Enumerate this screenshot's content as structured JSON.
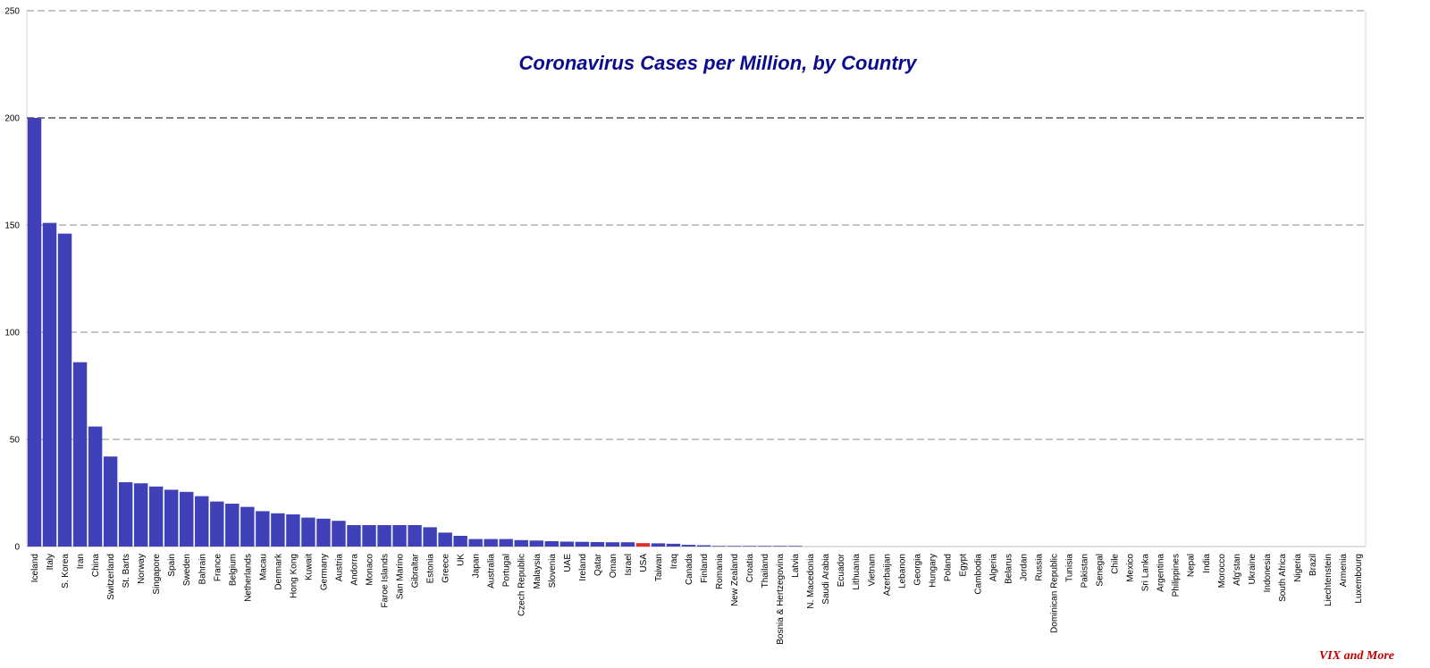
{
  "chart_data": {
    "type": "bar",
    "title": "Coronavirus Cases per Million, by Country",
    "credit": "VIX and More",
    "xlabel": "",
    "ylabel": "",
    "ylim": [
      0,
      250
    ],
    "yticks": [
      0,
      50,
      100,
      150,
      200,
      250
    ],
    "grid": true,
    "legend": "none",
    "colors": {
      "default": "#4040b8",
      "highlight": "#e0302a",
      "highlight_category": "USA"
    },
    "categories": [
      "Iceland",
      "Italy",
      "S. Korea",
      "Iran",
      "China",
      "Switzerland",
      "St. Barts",
      "Norway",
      "Singapore",
      "Spain",
      "Sweden",
      "Bahrain",
      "France",
      "Belgium",
      "Netherlands",
      "Macau",
      "Denmark",
      "Hong Kong",
      "Kuwait",
      "Germany",
      "Austria",
      "Andorra",
      "Monaco",
      "Faroe Islands",
      "San Marino",
      "Gibraltar",
      "Estonia",
      "Greece",
      "UK",
      "Japan",
      "Australia",
      "Portugal",
      "Czech Republic",
      "Malaysia",
      "Slovenia",
      "UAE",
      "Ireland",
      "Qatar",
      "Oman",
      "Israel",
      "USA",
      "Taiwan",
      "Iraq",
      "Canada",
      "Finland",
      "Romania",
      "New Zealand",
      "Croatia",
      "Thailand",
      "Bosnia & Hertzegovina",
      "Latvia",
      "N. Macedonia",
      "Saudi Arabia",
      "Ecuador",
      "Lithuania",
      "Vietnam",
      "Azerbaijan",
      "Lebanon",
      "Georgia",
      "Hungary",
      "Poland",
      "Egypt",
      "Cambodia",
      "Algeria",
      "Belarus",
      "Jordan",
      "Russia",
      "Dominican Republic",
      "Tunisia",
      "Pakistan",
      "Senegal",
      "Chile",
      "Mexico",
      "Sri Lanka",
      "Argentina",
      "Philippines",
      "Nepal",
      "India",
      "Morocco",
      "Afg'stan",
      "Ukraine",
      "Indonesia",
      "South Africa",
      "Nigeria",
      "Brazil",
      "Liechtenstein",
      "Armenia",
      "Luxembourg"
    ],
    "values": [
      200,
      151,
      146,
      86,
      56,
      42,
      30,
      29.5,
      28,
      26.5,
      25.5,
      23.5,
      21,
      20,
      18.5,
      16.5,
      15.5,
      15,
      13.5,
      13,
      12,
      10,
      10,
      10,
      10,
      10,
      9,
      6.5,
      5,
      3.5,
      3.5,
      3.5,
      3,
      2.8,
      2.5,
      2.3,
      2.2,
      2.1,
      2,
      2,
      1.6,
      1.5,
      1.3,
      0.8,
      0.6,
      0.3,
      0.3,
      0.3,
      0.3,
      0.3,
      0.3,
      0,
      0,
      0,
      0,
      0,
      0,
      0,
      0,
      0,
      0,
      0,
      0,
      0,
      0,
      0,
      0,
      0,
      0,
      0,
      0,
      0,
      0,
      0,
      0,
      0,
      0,
      0,
      0,
      0,
      0,
      0,
      0,
      0,
      0,
      0,
      0,
      0
    ]
  }
}
